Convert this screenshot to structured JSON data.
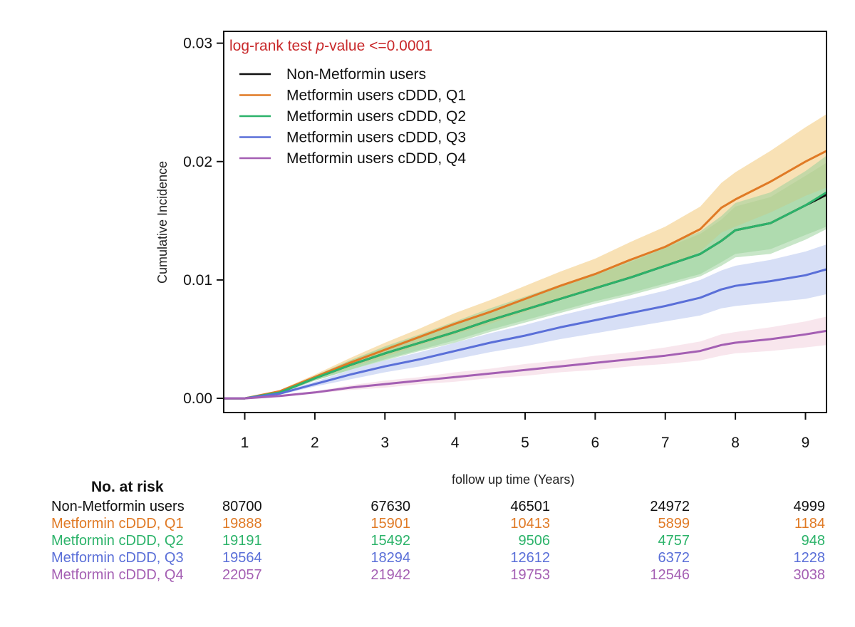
{
  "chart_data": {
    "type": "line",
    "subtype": "cumulative-incidence",
    "annotation": {
      "prefix": "log-rank test ",
      "italic": "p",
      "suffix": "-value <=0.0001",
      "color": "#c8282a"
    },
    "xlabel": "follow up time (Years)",
    "ylabel": "Cumulative Incidence",
    "xlim": [
      0.7,
      9.3
    ],
    "ylim": [
      -0.0012,
      0.031
    ],
    "x_ticks": [
      "1",
      "2",
      "3",
      "4",
      "5",
      "6",
      "7",
      "8",
      "9"
    ],
    "y_ticks": [
      "0.00",
      "0.01",
      "0.02",
      "0.03"
    ],
    "legend_position": "top-left",
    "series": [
      {
        "name": "Non-Metformin users",
        "color": "#111111",
        "band_color": "#9ad19a",
        "x": [
          0.7,
          1.0,
          1.5,
          2.0,
          2.5,
          3.0,
          3.5,
          4.0,
          4.5,
          5.0,
          5.5,
          6.0,
          6.5,
          7.0,
          7.5,
          7.8,
          8.0,
          8.5,
          9.0,
          9.3
        ],
        "values": [
          0,
          0,
          0.0005,
          0.0017,
          0.0028,
          0.0038,
          0.0047,
          0.0056,
          0.0066,
          0.0075,
          0.0084,
          0.0093,
          0.0102,
          0.0112,
          0.0122,
          0.0133,
          0.0142,
          0.0148,
          0.0163,
          0.0172
        ],
        "band": [
          0.0,
          0.0,
          0.0001,
          0.0002,
          0.0004,
          0.0005,
          0.0006,
          0.0007,
          0.0008,
          0.0009,
          0.001,
          0.0011,
          0.0013,
          0.0015,
          0.0017,
          0.0018,
          0.002,
          0.0022,
          0.0025,
          0.0027
        ]
      },
      {
        "name": "Metformin users cDDD, Q1",
        "color": "#e07a25",
        "band_color": "#f2c878",
        "x": [
          0.7,
          1.0,
          1.5,
          2.0,
          2.5,
          3.0,
          3.5,
          4.0,
          4.5,
          5.0,
          5.5,
          6.0,
          6.5,
          7.0,
          7.5,
          7.8,
          8.0,
          8.5,
          9.0,
          9.3
        ],
        "values": [
          0,
          0,
          0.0006,
          0.0018,
          0.003,
          0.0041,
          0.0052,
          0.0063,
          0.0073,
          0.0084,
          0.0095,
          0.0105,
          0.0117,
          0.0128,
          0.0143,
          0.0161,
          0.0168,
          0.0183,
          0.02,
          0.0209
        ],
        "band": [
          0.0,
          0.0,
          0.0001,
          0.0002,
          0.0004,
          0.0006,
          0.0007,
          0.0009,
          0.001,
          0.0011,
          0.0012,
          0.0013,
          0.0015,
          0.0017,
          0.0019,
          0.0021,
          0.0023,
          0.0026,
          0.0029,
          0.0031
        ]
      },
      {
        "name": "Metformin users cDDD, Q2",
        "color": "#2cb36a",
        "band_color": "#9ad19a",
        "x": [
          0.7,
          1.0,
          1.5,
          2.0,
          2.5,
          3.0,
          3.5,
          4.0,
          4.5,
          5.0,
          5.5,
          6.0,
          6.5,
          7.0,
          7.5,
          7.8,
          8.0,
          8.5,
          9.0,
          9.3
        ],
        "values": [
          0,
          0,
          0.0005,
          0.0017,
          0.0028,
          0.0038,
          0.0047,
          0.0056,
          0.0066,
          0.0075,
          0.0084,
          0.0093,
          0.0102,
          0.0112,
          0.0122,
          0.0133,
          0.0142,
          0.0148,
          0.0163,
          0.0174
        ],
        "band": [
          0.0,
          0.0,
          0.0001,
          0.0002,
          0.0004,
          0.0006,
          0.0007,
          0.0009,
          0.001,
          0.0011,
          0.0012,
          0.0013,
          0.0015,
          0.0017,
          0.0019,
          0.0021,
          0.0023,
          0.0026,
          0.0029,
          0.0031
        ]
      },
      {
        "name": "Metformin users cDDD, Q3",
        "color": "#5a6fd8",
        "band_color": "#b6c4ee",
        "x": [
          0.7,
          1.0,
          1.5,
          2.0,
          2.5,
          3.0,
          3.5,
          4.0,
          4.5,
          5.0,
          5.5,
          6.0,
          6.5,
          7.0,
          7.5,
          7.8,
          8.0,
          8.5,
          9.0,
          9.3
        ],
        "values": [
          0,
          0,
          0.0004,
          0.0012,
          0.002,
          0.0027,
          0.0033,
          0.004,
          0.0047,
          0.0053,
          0.006,
          0.0066,
          0.0072,
          0.0078,
          0.0085,
          0.0092,
          0.0095,
          0.0099,
          0.0104,
          0.0109
        ],
        "band": [
          0.0,
          0.0,
          0.0001,
          0.0002,
          0.0004,
          0.0005,
          0.0006,
          0.0007,
          0.0008,
          0.0009,
          0.001,
          0.0011,
          0.0012,
          0.0013,
          0.0015,
          0.0016,
          0.0017,
          0.0018,
          0.002,
          0.0021
        ]
      },
      {
        "name": "Metformin users cDDD, Q4",
        "color": "#a45fb3",
        "band_color": "#f3d1df",
        "x": [
          0.7,
          1.0,
          1.5,
          2.0,
          2.5,
          3.0,
          3.5,
          4.0,
          4.5,
          5.0,
          5.5,
          6.0,
          6.5,
          7.0,
          7.5,
          7.8,
          8.0,
          8.5,
          9.0,
          9.3
        ],
        "values": [
          0,
          0,
          0.0002,
          0.0005,
          0.0009,
          0.0012,
          0.0015,
          0.0018,
          0.0021,
          0.0024,
          0.0027,
          0.003,
          0.0033,
          0.0036,
          0.004,
          0.0045,
          0.0047,
          0.005,
          0.0054,
          0.0057
        ],
        "band": [
          0.0,
          0.0,
          0.0001,
          0.0001,
          0.0002,
          0.0003,
          0.0003,
          0.0004,
          0.0004,
          0.0005,
          0.0005,
          0.0006,
          0.0006,
          0.0007,
          0.0008,
          0.0009,
          0.0009,
          0.001,
          0.0011,
          0.0012
        ]
      }
    ]
  },
  "risk_table": {
    "title": "No. at risk",
    "rows": [
      {
        "label": "Non-Metformin users",
        "color": "#111111",
        "values": [
          "80700",
          "67630",
          "46501",
          "24972",
          "4999"
        ]
      },
      {
        "label": "Metformin cDDD, Q1",
        "color": "#e07a25",
        "values": [
          "19888",
          "15901",
          "10413",
          "5899",
          "1184"
        ]
      },
      {
        "label": "Metformin cDDD, Q2",
        "color": "#2cb36a",
        "values": [
          "19191",
          "15492",
          "9506",
          "4757",
          "948"
        ]
      },
      {
        "label": "Metformin cDDD, Q3",
        "color": "#5a6fd8",
        "values": [
          "19564",
          "18294",
          "12612",
          "6372",
          "1228"
        ]
      },
      {
        "label": "Metformin cDDD, Q4",
        "color": "#a45fb3",
        "values": [
          "22057",
          "21942",
          "19753",
          "12546",
          "3038"
        ]
      }
    ]
  }
}
